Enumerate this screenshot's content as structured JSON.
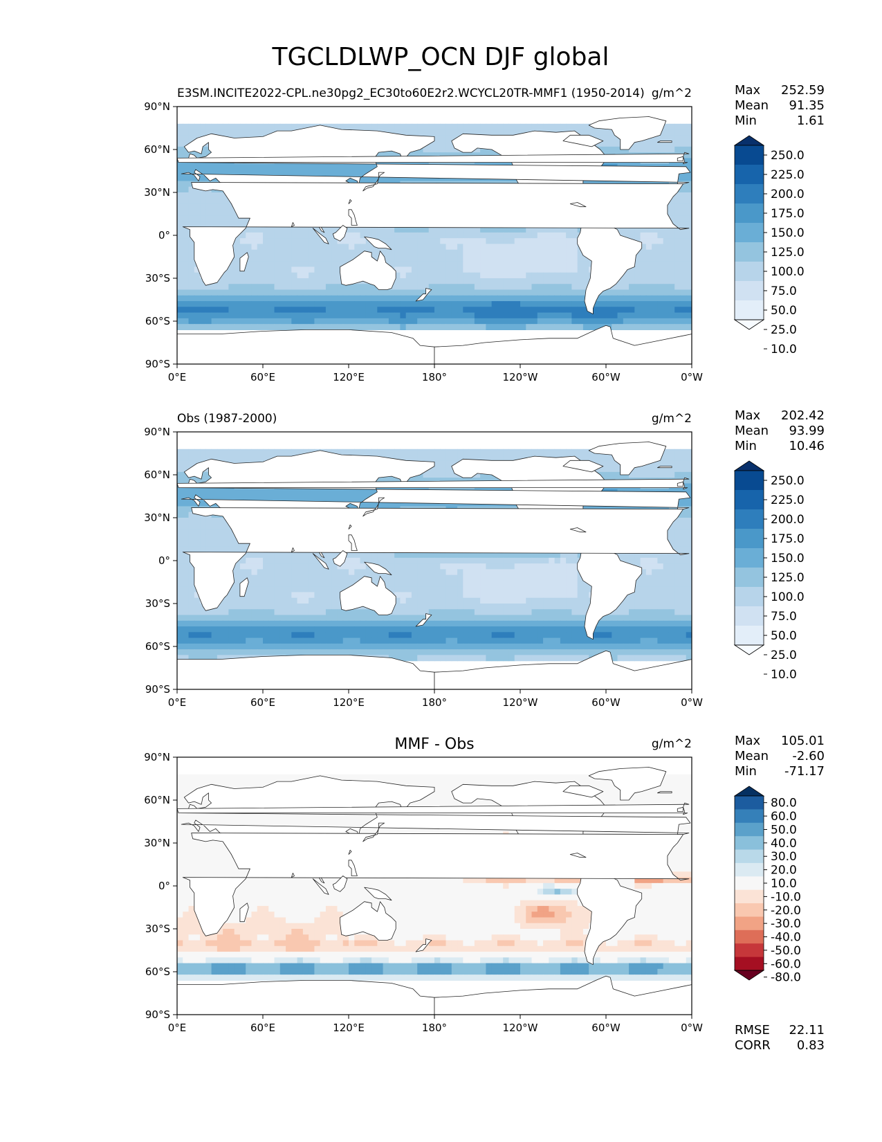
{
  "title": "TGCLDLWP_OCN DJF global",
  "xticks": [
    "0°E",
    "60°E",
    "120°E",
    "180°",
    "120°W",
    "60°W",
    "0°W"
  ],
  "yticks": [
    "90°N",
    "60°N",
    "30°N",
    "0°",
    "30°S",
    "60°S",
    "90°S"
  ],
  "panels": [
    {
      "left_title": "E3SM.INCITE2022-CPL.ne30pg2_EC30to60E2r2.WCYCL20TR-MMF1 (1950-2014)",
      "center_title": "",
      "units": "g/m^2",
      "stats": [
        {
          "label": "Max",
          "value": "252.59"
        },
        {
          "label": "Mean",
          "value": "91.35"
        },
        {
          "label": "Min",
          "value": "1.61"
        }
      ],
      "colorbar_ticks": [
        "250.0",
        "225.0",
        "200.0",
        "175.0",
        "150.0",
        "125.0",
        "100.0",
        "75.0",
        "50.0",
        "25.0",
        "10.0"
      ],
      "colormap": "Blues",
      "field_kind": "model_lwp"
    },
    {
      "left_title": "Obs (1987-2000)",
      "center_title": "",
      "units": "g/m^2",
      "stats": [
        {
          "label": "Max",
          "value": "202.42"
        },
        {
          "label": "Mean",
          "value": "93.99"
        },
        {
          "label": "Min",
          "value": "10.46"
        }
      ],
      "colorbar_ticks": [
        "250.0",
        "225.0",
        "200.0",
        "175.0",
        "150.0",
        "125.0",
        "100.0",
        "75.0",
        "50.0",
        "25.0",
        "10.0"
      ],
      "colormap": "Blues",
      "field_kind": "obs_lwp"
    },
    {
      "left_title": "",
      "center_title": "MMF - Obs",
      "units": "g/m^2",
      "stats": [
        {
          "label": "Max",
          "value": "105.01"
        },
        {
          "label": "Mean",
          "value": "-2.60"
        },
        {
          "label": "Min",
          "value": "-71.17"
        }
      ],
      "colorbar_ticks": [
        "80.0",
        "60.0",
        "50.0",
        "40.0",
        "30.0",
        "20.0",
        "10.0",
        "-10.0",
        "-20.0",
        "-30.0",
        "-40.0",
        "-50.0",
        "-60.0",
        "-80.0"
      ],
      "colormap": "RdBu",
      "field_kind": "difference",
      "extra_stats": [
        {
          "label": "RMSE",
          "value": "22.11"
        },
        {
          "label": "CORR",
          "value": "0.83"
        }
      ]
    }
  ],
  "colors": {
    "blues": [
      "#f7fbff",
      "#e3eef9",
      "#d0e1f2",
      "#b7d4ea",
      "#94c4df",
      "#6aaed6",
      "#4a98c9",
      "#2e7ebc",
      "#1764ab",
      "#084a91",
      "#08306b"
    ],
    "rdbu": [
      "#67001f",
      "#a50f22",
      "#c6373a",
      "#de6e58",
      "#f1a385",
      "#f9c8b0",
      "#fbe3d6",
      "#f7f7f7",
      "#dbeaf2",
      "#b9d9e9",
      "#8ac0db",
      "#5ba1ca",
      "#3580b9",
      "#1c5c9f",
      "#053061"
    ],
    "land": "#ffffff",
    "coast": "#222222"
  }
}
